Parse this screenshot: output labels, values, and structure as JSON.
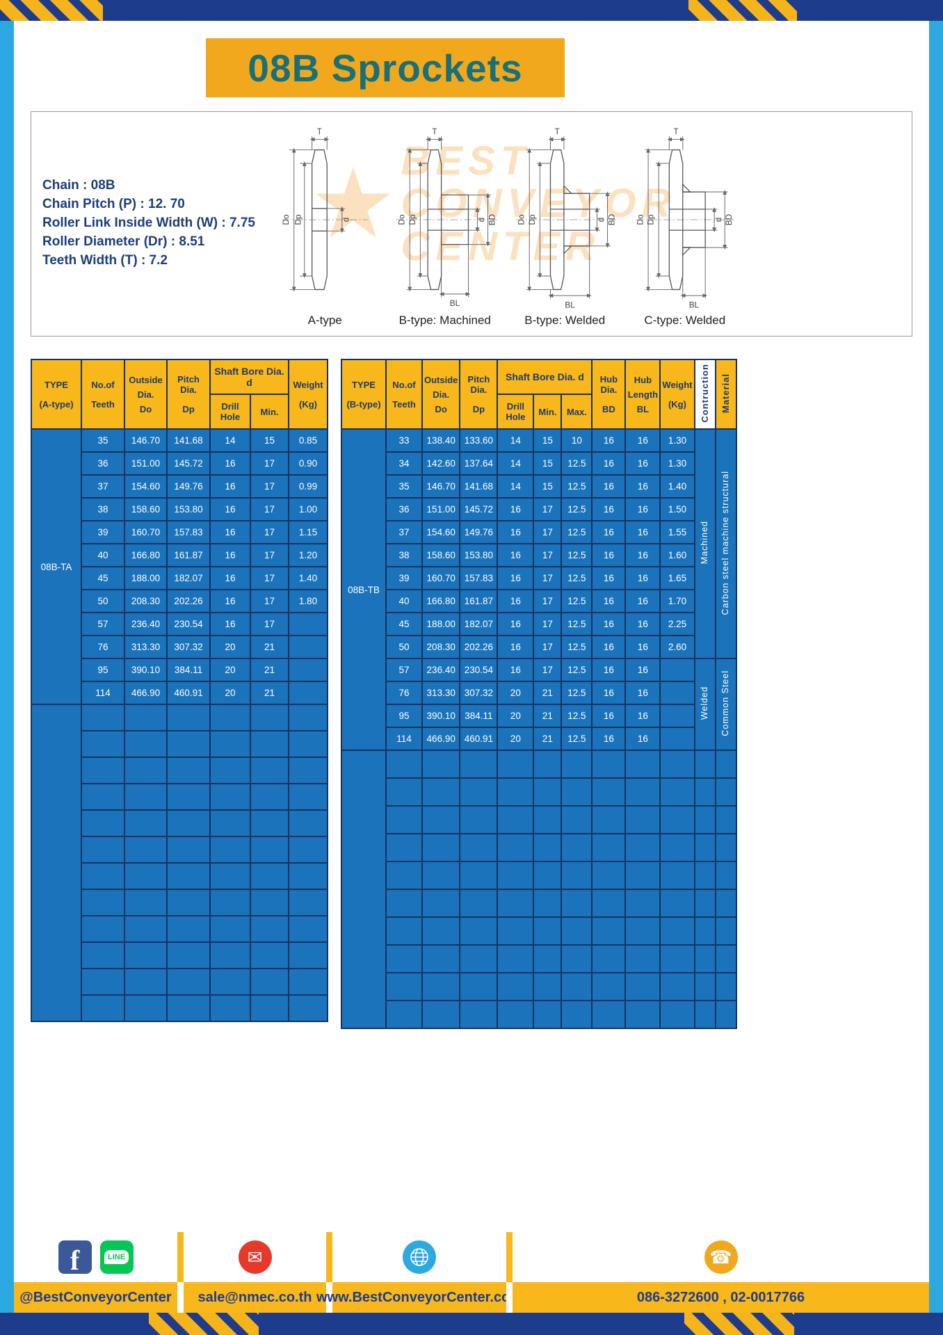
{
  "banner": {
    "title": "08B Sprockets"
  },
  "specs": {
    "lines": [
      "Chain : 08B",
      "Chain Pitch (P) : 12. 70",
      "Roller Link Inside Width (W) : 7.75",
      "Roller Diameter (Dr) : 8.51",
      "Teeth Width (T) : 7.2"
    ]
  },
  "watermark": {
    "lines": [
      "BEST",
      "CONVEYOR",
      "CENTER"
    ]
  },
  "diagrams": {
    "labels": [
      "A-type",
      "B-type: Machined",
      "B-type: Welded",
      "C-type: Welded"
    ],
    "dims": {
      "t": "T",
      "do_": "Do",
      "dp": "Dp",
      "d": "d",
      "bd": "BD",
      "bl": "BL"
    }
  },
  "tables": {
    "shared_headers": {
      "teeth": [
        "No.of",
        "Teeth"
      ],
      "outside": [
        "Outside",
        "Dia.",
        "Do"
      ],
      "pitch": [
        "Pitch Dia.",
        "Dp"
      ],
      "shaft_bore": "Shaft Bore Dia. d",
      "drill": "Drill Hole",
      "min": "Min.",
      "max": "Max.",
      "hub_dia": [
        "Hub Dia.",
        "BD"
      ],
      "hub_length": [
        "Hub",
        "Length",
        "BL"
      ],
      "weight": [
        "Weight",
        "(Kg)"
      ],
      "construction": "Contruction",
      "material": "Material"
    },
    "left": {
      "type_header": [
        "TYPE",
        "(A-type)"
      ],
      "type_label": "08B-TA",
      "rows": [
        [
          "35",
          "146.70",
          "141.68",
          "14",
          "15",
          "0.85"
        ],
        [
          "36",
          "151.00",
          "145.72",
          "16",
          "17",
          "0.90"
        ],
        [
          "37",
          "154.60",
          "149.76",
          "16",
          "17",
          "0.99"
        ],
        [
          "38",
          "158.60",
          "153.80",
          "16",
          "17",
          "1.00"
        ],
        [
          "39",
          "160.70",
          "157.83",
          "16",
          "17",
          "1.15"
        ],
        [
          "40",
          "166.80",
          "161.87",
          "16",
          "17",
          "1.20"
        ],
        [
          "45",
          "188.00",
          "182.07",
          "16",
          "17",
          "1.40"
        ],
        [
          "50",
          "208.30",
          "202.26",
          "16",
          "17",
          "1.80"
        ],
        [
          "57",
          "236.40",
          "230.54",
          "16",
          "17",
          ""
        ],
        [
          "76",
          "313.30",
          "307.32",
          "20",
          "21",
          ""
        ],
        [
          "95",
          "390.10",
          "384.11",
          "20",
          "21",
          ""
        ],
        [
          "114",
          "466.90",
          "460.91",
          "20",
          "21",
          ""
        ]
      ],
      "empty_rows": 12
    },
    "right": {
      "type_header": [
        "TYPE",
        "(B-type)"
      ],
      "type_label": "08B-TB",
      "rows": [
        [
          "33",
          "138.40",
          "133.60",
          "14",
          "15",
          "10",
          "16",
          "16",
          "1.30"
        ],
        [
          "34",
          "142.60",
          "137.64",
          "14",
          "15",
          "12.5",
          "16",
          "16",
          "1.30"
        ],
        [
          "35",
          "146.70",
          "141.68",
          "14",
          "15",
          "12.5",
          "16",
          "16",
          "1.40"
        ],
        [
          "36",
          "151.00",
          "145.72",
          "16",
          "17",
          "12.5",
          "16",
          "16",
          "1.50"
        ],
        [
          "37",
          "154.60",
          "149.76",
          "16",
          "17",
          "12.5",
          "16",
          "16",
          "1.55"
        ],
        [
          "38",
          "158.60",
          "153.80",
          "16",
          "17",
          "12.5",
          "16",
          "16",
          "1.60"
        ],
        [
          "39",
          "160.70",
          "157.83",
          "16",
          "17",
          "12.5",
          "16",
          "16",
          "1.65"
        ],
        [
          "40",
          "166.80",
          "161.87",
          "16",
          "17",
          "12.5",
          "16",
          "16",
          "1.70"
        ],
        [
          "45",
          "188.00",
          "182.07",
          "16",
          "17",
          "12.5",
          "16",
          "16",
          "2.25"
        ],
        [
          "50",
          "208.30",
          "202.26",
          "16",
          "17",
          "12.5",
          "16",
          "16",
          "2.60"
        ],
        [
          "57",
          "236.40",
          "230.54",
          "16",
          "17",
          "12.5",
          "16",
          "16",
          ""
        ],
        [
          "76",
          "313.30",
          "307.32",
          "20",
          "21",
          "12.5",
          "16",
          "16",
          ""
        ],
        [
          "95",
          "390.10",
          "384.11",
          "20",
          "21",
          "12.5",
          "16",
          "16",
          ""
        ],
        [
          "114",
          "466.90",
          "460.91",
          "20",
          "21",
          "12.5",
          "16",
          "16",
          ""
        ]
      ],
      "construction_groups": [
        {
          "label": "Machined",
          "span": 10
        },
        {
          "label": "Welded",
          "span": 4
        }
      ],
      "material_groups": [
        {
          "label": "Carbon steel  machine structural",
          "span": 10
        },
        {
          "label": "Common  Steel",
          "span": 4
        }
      ],
      "empty_rows": 10
    }
  },
  "footer": {
    "sections": [
      {
        "text": "@BestConveyorCenter"
      },
      {
        "text": "sale@nmec.co.th"
      },
      {
        "text": "www.BestConveyorCenter.com"
      },
      {
        "text": "086-3272600 , 02-0017766"
      }
    ]
  },
  "icons": {
    "facebook": "f",
    "line": "LINE",
    "email": "✉",
    "phone": "☎",
    "watermark_star": "★"
  },
  "colors": {
    "accent_gold": "#F2A81D",
    "header_yellow": "#F8B71A",
    "table_blue": "#1B74BB",
    "grid_navy": "#17335F",
    "frame_blue": "#2BA9E0",
    "title_teal": "#17707A",
    "hazard_navy": "#1E3C8C"
  }
}
